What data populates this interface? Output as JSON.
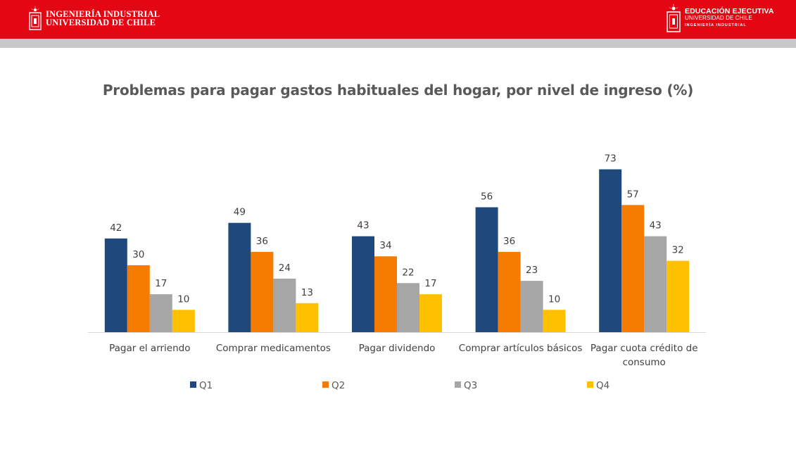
{
  "header": {
    "left_logo": {
      "line1": "INGENIERÍA INDUSTRIAL",
      "line2": "UNIVERSIDAD DE CHILE",
      "icon": "university-seal-icon"
    },
    "right_logo": {
      "line1": "EDUCACIÓN EJECUTIVA",
      "line2": "UNIVERSIDAD DE CHILE",
      "line3": "INGENIERÍA INDUSTRIAL",
      "icon": "university-seal-icon"
    },
    "colors": {
      "band": "#e30613",
      "stripe": "#c8c8c8"
    }
  },
  "chart_data": {
    "type": "bar",
    "title": "Problemas para pagar gastos habituales del hogar, por nivel de ingreso (%)",
    "categories": [
      [
        "Pagar el arriendo"
      ],
      [
        "Comprar medicamentos"
      ],
      [
        "Pagar dividendo"
      ],
      [
        "Comprar artículos básicos"
      ],
      [
        "Pagar cuota crédito de",
        "consumo"
      ]
    ],
    "series": [
      {
        "name": "Q1",
        "color": "#1f497d",
        "values": [
          42,
          49,
          43,
          56,
          73
        ]
      },
      {
        "name": "Q2",
        "color": "#f57c00",
        "values": [
          30,
          36,
          34,
          36,
          57
        ]
      },
      {
        "name": "Q3",
        "color": "#a6a6a6",
        "values": [
          17,
          24,
          22,
          23,
          43
        ]
      },
      {
        "name": "Q4",
        "color": "#ffc000",
        "values": [
          10,
          13,
          17,
          10,
          32
        ]
      }
    ],
    "ylim": [
      0,
      80
    ],
    "grid": false,
    "data_labels": true,
    "legend_position": "bottom"
  }
}
